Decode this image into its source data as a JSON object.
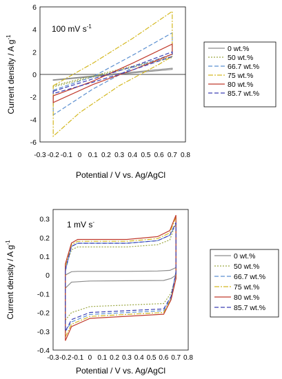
{
  "chart_data": [
    {
      "type": "line",
      "annotation": "100 mV s",
      "annotation_sup": "-1",
      "xlabel": "Potential / V vs. Ag/AgCl",
      "ylabel_main": "Current density / A g",
      "ylabel_sup": "-1",
      "xlim": [
        -0.3,
        0.8
      ],
      "ylim": [
        -6,
        6
      ],
      "xticks": [
        "-0.3",
        "-0.2",
        "-0.1",
        "0",
        "0.1",
        "0.2",
        "0.3",
        "0.4",
        "0.5",
        "0.6",
        "0.7",
        "0.8"
      ],
      "yticks": [
        "-6",
        "-4",
        "-2",
        "0",
        "2",
        "4",
        "6"
      ],
      "legend_position": "right",
      "series": [
        {
          "name": "0 wt.%",
          "color": "#8c8c8c",
          "dash": "",
          "upper": [
            [
              -0.2,
              -0.48
            ],
            [
              0.7,
              0.55
            ]
          ],
          "lower": [
            [
              -0.2,
              -0.52
            ],
            [
              0.7,
              0.45
            ]
          ]
        },
        {
          "name": "50 wt.%",
          "color": "#9aa640",
          "dash": "2,2",
          "upper": [
            [
              -0.2,
              -1.0
            ],
            [
              0.7,
              1.6
            ]
          ],
          "lower": [
            [
              -0.2,
              -1.1
            ],
            [
              0.7,
              1.5
            ]
          ]
        },
        {
          "name": "66.7 wt.%",
          "color": "#5b8fd0",
          "dash": "6,3",
          "upper": [
            [
              -0.2,
              -1.4
            ],
            [
              0.1,
              -0.2
            ],
            [
              0.4,
              1.7
            ],
            [
              0.7,
              3.7
            ]
          ],
          "lower": [
            [
              -0.2,
              -3.6
            ],
            [
              0.1,
              -1.3
            ],
            [
              0.4,
              0.6
            ],
            [
              0.7,
              1.8
            ]
          ]
        },
        {
          "name": "75 wt.%",
          "color": "#d4b820",
          "dash": "7,2,2,2",
          "upper": [
            [
              -0.2,
              -1.0
            ],
            [
              0.1,
              1.0
            ],
            [
              0.4,
              3.2
            ],
            [
              0.6,
              4.8
            ],
            [
              0.7,
              5.6
            ]
          ],
          "lower": [
            [
              -0.2,
              -5.5
            ],
            [
              0.0,
              -3.4
            ],
            [
              0.3,
              -1.0
            ],
            [
              0.6,
              0.9
            ],
            [
              0.7,
              1.6
            ]
          ]
        },
        {
          "name": "80 wt.%",
          "color": "#c0392b",
          "dash": "",
          "upper": [
            [
              -0.2,
              -1.9
            ],
            [
              0.1,
              -0.6
            ],
            [
              0.4,
              1.0
            ],
            [
              0.7,
              2.7
            ]
          ],
          "lower": [
            [
              -0.2,
              -2.5
            ],
            [
              0.1,
              -0.9
            ],
            [
              0.4,
              0.4
            ],
            [
              0.7,
              1.8
            ]
          ]
        },
        {
          "name": "85.7 wt.%",
          "color": "#3a3fb5",
          "dash": "6,3",
          "upper": [
            [
              -0.2,
              -1.5
            ],
            [
              0.1,
              -0.4
            ],
            [
              0.4,
              0.7
            ],
            [
              0.7,
              2.0
            ]
          ],
          "lower": [
            [
              -0.2,
              -1.7
            ],
            [
              0.1,
              -0.7
            ],
            [
              0.4,
              0.4
            ],
            [
              0.7,
              1.6
            ]
          ]
        }
      ]
    },
    {
      "type": "line",
      "annotation": "1 mV s",
      "annotation_sup": "-",
      "xlabel": "Potential / V vs. Ag/AgCl",
      "ylabel_main": "Current density / A g",
      "ylabel_sup": "-1",
      "xlim": [
        -0.3,
        0.8
      ],
      "ylim": [
        -0.4,
        0.35
      ],
      "xticks": [
        "-0.3",
        "-0.2",
        "-0.1",
        "0",
        "0.1",
        "0.2",
        "0.3",
        "0.4",
        "0.5",
        "0.6",
        "0.7",
        "0.8"
      ],
      "yticks": [
        "-0.4",
        "-0.3",
        "-0.2",
        "-0.1",
        "0",
        "0.1",
        "0.2",
        "0.3"
      ],
      "legend_position": "right",
      "series": [
        {
          "name": "0 wt.%",
          "color": "#8c8c8c",
          "dash": "",
          "top_start": 0.0,
          "top_plateau": 0.02,
          "top_end": 0.04,
          "bot_start": -0.07,
          "bot_plateau": -0.03,
          "bot_end": 0.0
        },
        {
          "name": "50 wt.%",
          "color": "#9aa640",
          "dash": "2,2",
          "top_start": 0.04,
          "top_plateau": 0.15,
          "top_end": 0.28,
          "bot_start": -0.24,
          "bot_plateau": -0.16,
          "bot_end": 0.0
        },
        {
          "name": "66.7 wt.%",
          "color": "#5b8fd0",
          "dash": "6,3",
          "top_start": 0.02,
          "top_plateau": 0.17,
          "top_end": 0.27,
          "bot_start": -0.3,
          "bot_plateau": -0.2,
          "bot_end": 0.02
        },
        {
          "name": "75 wt.%",
          "color": "#d4b820",
          "dash": "7,2,2,2",
          "top_start": 0.05,
          "top_plateau": 0.18,
          "top_end": 0.31,
          "bot_start": -0.33,
          "bot_plateau": -0.21,
          "bot_end": -0.02
        },
        {
          "name": "80 wt.%",
          "color": "#c0392b",
          "dash": "",
          "top_start": 0.06,
          "top_plateau": 0.19,
          "top_end": 0.32,
          "bot_start": -0.35,
          "bot_plateau": -0.22,
          "bot_end": -0.02
        },
        {
          "name": "85.7 wt.%",
          "color": "#3a3fb5",
          "dash": "6,3",
          "top_start": 0.03,
          "top_plateau": 0.17,
          "top_end": 0.28,
          "bot_start": -0.3,
          "bot_plateau": -0.19,
          "bot_end": 0.01
        }
      ]
    }
  ]
}
